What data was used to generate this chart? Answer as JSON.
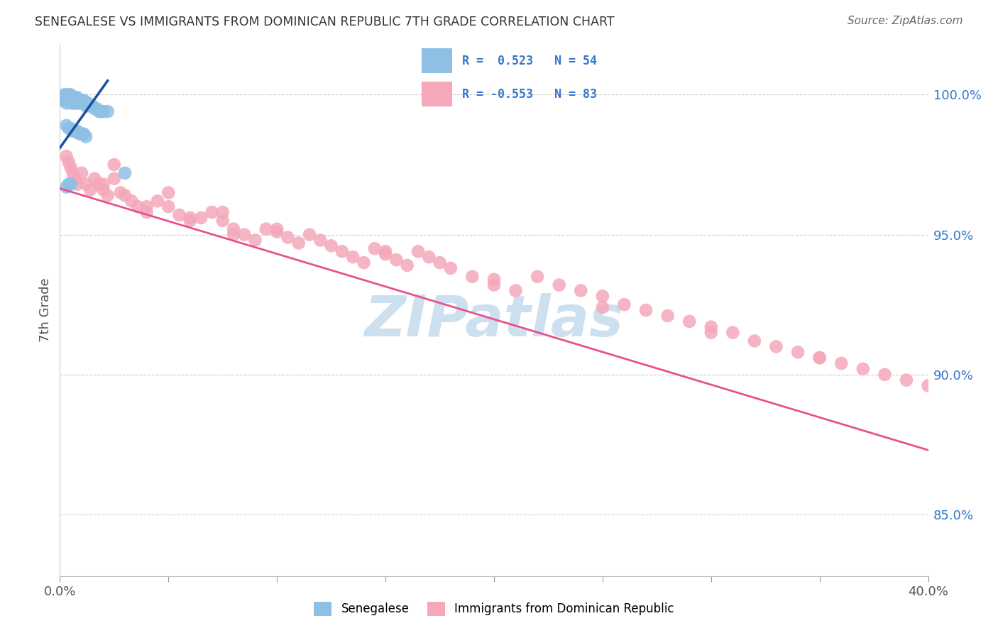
{
  "title": "SENEGALESE VS IMMIGRANTS FROM DOMINICAN REPUBLIC 7TH GRADE CORRELATION CHART",
  "source": "Source: ZipAtlas.com",
  "ylabel": "7th Grade",
  "yaxis_labels": [
    "100.0%",
    "95.0%",
    "90.0%",
    "85.0%"
  ],
  "yaxis_values": [
    1.0,
    0.95,
    0.9,
    0.85
  ],
  "xmin": 0.0,
  "xmax": 0.4,
  "ymin": 0.828,
  "ymax": 1.018,
  "legend_label_blue": "Senegalese",
  "legend_label_pink": "Immigrants from Dominican Republic",
  "blue_color": "#8ec0e4",
  "pink_color": "#f4a8ba",
  "blue_line_color": "#1a4fa0",
  "pink_line_color": "#e8528a",
  "text_color_blue": "#3377cc",
  "watermark_color": "#cce0f0",
  "blue_scatter_x": [
    0.001,
    0.002,
    0.002,
    0.003,
    0.003,
    0.003,
    0.004,
    0.004,
    0.004,
    0.005,
    0.005,
    0.005,
    0.005,
    0.006,
    0.006,
    0.006,
    0.007,
    0.007,
    0.007,
    0.008,
    0.008,
    0.008,
    0.009,
    0.009,
    0.01,
    0.01,
    0.011,
    0.011,
    0.012,
    0.012,
    0.013,
    0.013,
    0.014,
    0.015,
    0.016,
    0.017,
    0.018,
    0.019,
    0.02,
    0.022,
    0.003,
    0.004,
    0.005,
    0.006,
    0.007,
    0.008,
    0.009,
    0.01,
    0.011,
    0.012,
    0.03,
    0.003,
    0.004,
    0.005
  ],
  "blue_scatter_y": [
    0.998,
    0.999,
    1.0,
    0.997,
    0.999,
    1.0,
    0.998,
    0.999,
    1.0,
    0.997,
    0.998,
    0.999,
    1.0,
    0.997,
    0.998,
    0.999,
    0.997,
    0.998,
    0.999,
    0.997,
    0.998,
    0.999,
    0.997,
    0.998,
    0.997,
    0.998,
    0.997,
    0.998,
    0.996,
    0.997,
    0.996,
    0.997,
    0.996,
    0.996,
    0.995,
    0.995,
    0.994,
    0.994,
    0.994,
    0.994,
    0.989,
    0.988,
    0.988,
    0.987,
    0.987,
    0.987,
    0.986,
    0.986,
    0.986,
    0.985,
    0.972,
    0.967,
    0.968,
    0.968
  ],
  "pink_scatter_x": [
    0.003,
    0.004,
    0.005,
    0.006,
    0.007,
    0.008,
    0.01,
    0.012,
    0.014,
    0.016,
    0.018,
    0.02,
    0.022,
    0.025,
    0.028,
    0.03,
    0.033,
    0.036,
    0.04,
    0.045,
    0.05,
    0.055,
    0.06,
    0.065,
    0.07,
    0.075,
    0.08,
    0.085,
    0.09,
    0.095,
    0.1,
    0.105,
    0.11,
    0.115,
    0.12,
    0.125,
    0.13,
    0.135,
    0.14,
    0.145,
    0.15,
    0.155,
    0.16,
    0.165,
    0.17,
    0.175,
    0.18,
    0.19,
    0.2,
    0.21,
    0.22,
    0.23,
    0.24,
    0.25,
    0.26,
    0.27,
    0.28,
    0.29,
    0.3,
    0.31,
    0.32,
    0.33,
    0.34,
    0.35,
    0.36,
    0.37,
    0.38,
    0.39,
    0.4,
    0.025,
    0.05,
    0.075,
    0.1,
    0.15,
    0.2,
    0.25,
    0.3,
    0.35,
    0.02,
    0.04,
    0.06,
    0.08
  ],
  "pink_scatter_y": [
    0.978,
    0.976,
    0.974,
    0.972,
    0.97,
    0.968,
    0.972,
    0.968,
    0.966,
    0.97,
    0.968,
    0.966,
    0.964,
    0.97,
    0.965,
    0.964,
    0.962,
    0.96,
    0.958,
    0.962,
    0.96,
    0.957,
    0.955,
    0.956,
    0.958,
    0.955,
    0.952,
    0.95,
    0.948,
    0.952,
    0.951,
    0.949,
    0.947,
    0.95,
    0.948,
    0.946,
    0.944,
    0.942,
    0.94,
    0.945,
    0.943,
    0.941,
    0.939,
    0.944,
    0.942,
    0.94,
    0.938,
    0.935,
    0.932,
    0.93,
    0.935,
    0.932,
    0.93,
    0.928,
    0.925,
    0.923,
    0.921,
    0.919,
    0.917,
    0.915,
    0.912,
    0.91,
    0.908,
    0.906,
    0.904,
    0.902,
    0.9,
    0.898,
    0.896,
    0.975,
    0.965,
    0.958,
    0.952,
    0.944,
    0.934,
    0.924,
    0.915,
    0.906,
    0.968,
    0.96,
    0.956,
    0.95
  ],
  "pink_line_x0": 0.0,
  "pink_line_y0": 0.9665,
  "pink_line_x1": 0.4,
  "pink_line_y1": 0.873,
  "blue_line_x0": 0.0,
  "blue_line_y0": 0.981,
  "blue_line_x1": 0.022,
  "blue_line_y1": 1.005
}
